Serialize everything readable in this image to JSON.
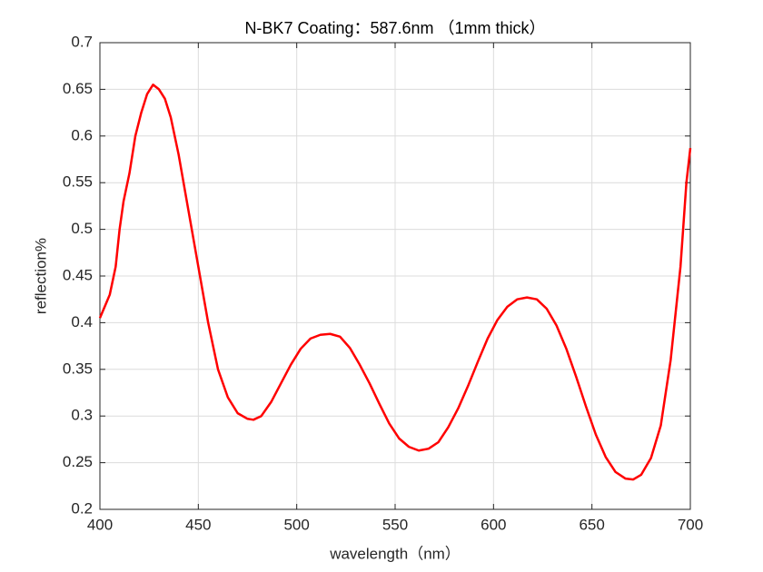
{
  "chart_data": {
    "type": "line",
    "title": "N-BK7 Coating：587.6nm （1mm thick）",
    "x_label": "wavelength（nm）",
    "y_label": "reflection%",
    "x": [
      400,
      403,
      405,
      408,
      410,
      412,
      415,
      418,
      421,
      424,
      427,
      430,
      433,
      436,
      440,
      445,
      450,
      455,
      460,
      465,
      470,
      475,
      478,
      482,
      487,
      492,
      497,
      502,
      507,
      512,
      517,
      522,
      527,
      532,
      537,
      542,
      547,
      552,
      557,
      562,
      567,
      572,
      577,
      582,
      587,
      592,
      597,
      602,
      607,
      612,
      617,
      622,
      627,
      632,
      637,
      642,
      647,
      652,
      657,
      662,
      667,
      671,
      675,
      680,
      685,
      690,
      695,
      698,
      700
    ],
    "series": [
      {
        "name": "reflection",
        "color": "#ff0000",
        "values": [
          0.405,
          0.42,
          0.43,
          0.46,
          0.5,
          0.53,
          0.56,
          0.6,
          0.625,
          0.645,
          0.655,
          0.65,
          0.64,
          0.62,
          0.58,
          0.52,
          0.46,
          0.4,
          0.35,
          0.32,
          0.303,
          0.297,
          0.296,
          0.3,
          0.315,
          0.335,
          0.355,
          0.372,
          0.383,
          0.387,
          0.388,
          0.385,
          0.373,
          0.355,
          0.335,
          0.313,
          0.292,
          0.276,
          0.267,
          0.263,
          0.265,
          0.272,
          0.288,
          0.308,
          0.332,
          0.358,
          0.383,
          0.403,
          0.417,
          0.425,
          0.427,
          0.425,
          0.415,
          0.397,
          0.372,
          0.342,
          0.31,
          0.28,
          0.256,
          0.24,
          0.233,
          0.232,
          0.237,
          0.255,
          0.29,
          0.36,
          0.46,
          0.55,
          0.587
        ]
      }
    ],
    "xlim": [
      400,
      700
    ],
    "xticks": [
      400,
      450,
      500,
      550,
      600,
      650,
      700
    ],
    "ylim": [
      0.2,
      0.7
    ],
    "yticks": [
      0.2,
      0.25,
      0.3,
      0.35,
      0.4,
      0.45,
      0.5,
      0.55,
      0.6,
      0.65,
      0.7
    ],
    "grid": true
  }
}
